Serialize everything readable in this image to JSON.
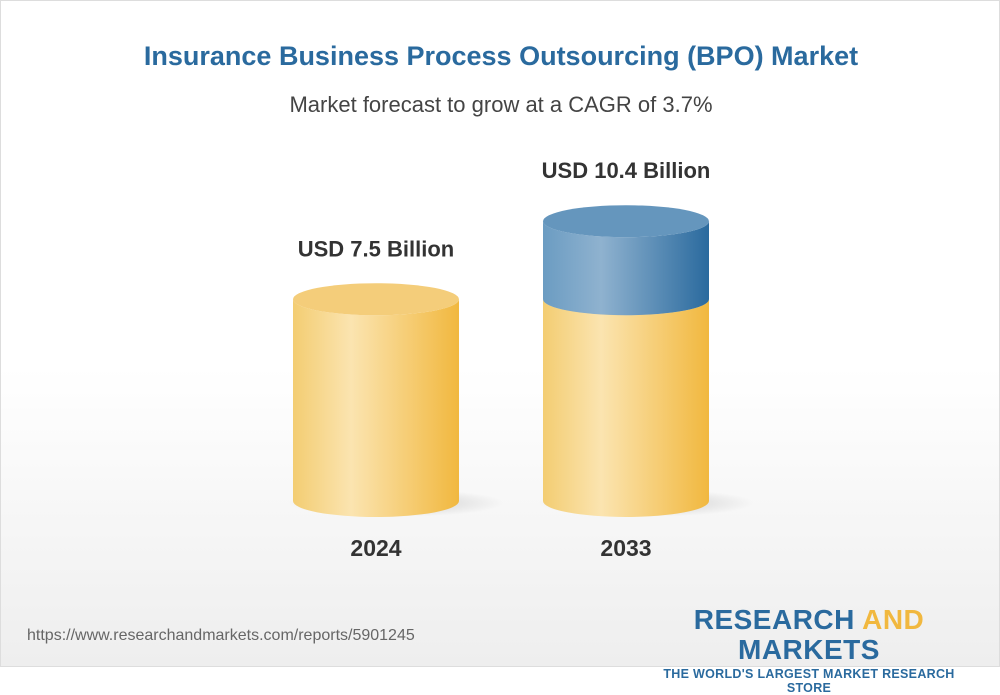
{
  "title": "Insurance Business Process Outsourcing (BPO) Market",
  "subtitle": "Market forecast to grow at a CAGR of 3.7%",
  "chart_data": {
    "type": "bar",
    "style": "3d-cylinder",
    "categories": [
      "2024",
      "2033"
    ],
    "values": [
      7.5,
      10.4
    ],
    "data_labels": [
      "USD 7.5 Billion",
      "USD 10.4 Billion"
    ],
    "unit": "USD Billion",
    "colors": {
      "base": "#f3c45a",
      "growth": "#2f6c9f"
    }
  },
  "footer": {
    "url": "https://www.researchandmarkets.com/reports/5901245",
    "logo_part1": "RESEARCH",
    "logo_part2": "AND",
    "logo_part3": "MARKETS",
    "tagline": "THE WORLD'S LARGEST MARKET RESEARCH STORE"
  }
}
